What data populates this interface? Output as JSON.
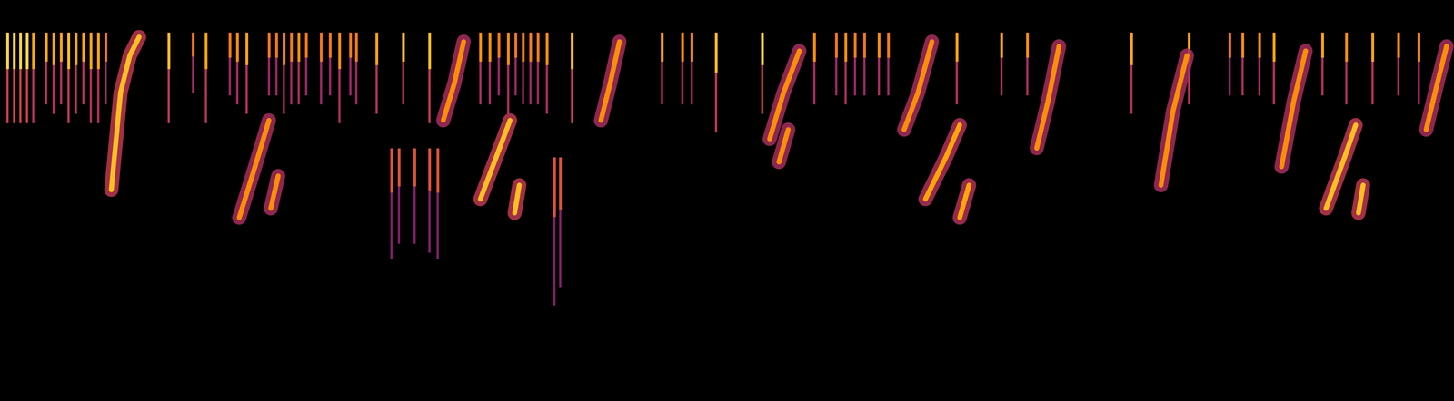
{
  "chart_data": {
    "type": "spectrogram",
    "tick_labels": false,
    "xlim": [
      0,
      1568
    ],
    "ylim": [
      0,
      433
    ],
    "clicks": [
      [
        8,
        398,
        300,
        0.9
      ],
      [
        15,
        398,
        300,
        0.9
      ],
      [
        22,
        398,
        300,
        0.9
      ],
      [
        29,
        398,
        300,
        0.9
      ],
      [
        36,
        398,
        300,
        0.8
      ],
      [
        50,
        398,
        320,
        0.8
      ],
      [
        58,
        398,
        310,
        0.8
      ],
      [
        66,
        398,
        320,
        0.8
      ],
      [
        74,
        398,
        300,
        0.85
      ],
      [
        82,
        398,
        310,
        0.8
      ],
      [
        90,
        398,
        320,
        0.8
      ],
      [
        98,
        398,
        300,
        0.8
      ],
      [
        106,
        398,
        300,
        0.8
      ],
      [
        114,
        398,
        320,
        0.7
      ],
      [
        182,
        398,
        300,
        0.85
      ],
      [
        208,
        398,
        333,
        0.7
      ],
      [
        222,
        398,
        300,
        0.8
      ],
      [
        248,
        398,
        330,
        0.7
      ],
      [
        256,
        398,
        320,
        0.75
      ],
      [
        266,
        398,
        310,
        0.8
      ],
      [
        290,
        398,
        330,
        0.7
      ],
      [
        298,
        398,
        330,
        0.7
      ],
      [
        306,
        398,
        310,
        0.75
      ],
      [
        314,
        398,
        320,
        0.7
      ],
      [
        322,
        398,
        320,
        0.75
      ],
      [
        330,
        398,
        330,
        0.7
      ],
      [
        346,
        398,
        320,
        0.7
      ],
      [
        356,
        398,
        330,
        0.7
      ],
      [
        366,
        398,
        300,
        0.75
      ],
      [
        378,
        398,
        330,
        0.7
      ],
      [
        384,
        398,
        320,
        0.7
      ],
      [
        406,
        398,
        310,
        0.8
      ],
      [
        422,
        273,
        153,
        0.6
      ],
      [
        430,
        273,
        170,
        0.6
      ],
      [
        447,
        273,
        170,
        0.6
      ],
      [
        463,
        273,
        160,
        0.6
      ],
      [
        472,
        273,
        153,
        0.6
      ],
      [
        435,
        398,
        320,
        0.85
      ],
      [
        463,
        398,
        300,
        0.85
      ],
      [
        518,
        398,
        320,
        0.75
      ],
      [
        528,
        398,
        320,
        0.75
      ],
      [
        538,
        398,
        330,
        0.7
      ],
      [
        548,
        398,
        310,
        0.75
      ],
      [
        556,
        398,
        330,
        0.7
      ],
      [
        564,
        398,
        320,
        0.7
      ],
      [
        572,
        398,
        320,
        0.7
      ],
      [
        580,
        398,
        320,
        0.7
      ],
      [
        590,
        398,
        310,
        0.75
      ],
      [
        598,
        263,
        103,
        0.6
      ],
      [
        604,
        263,
        123,
        0.6
      ],
      [
        617,
        398,
        300,
        0.85
      ],
      [
        714,
        398,
        320,
        0.8
      ],
      [
        736,
        398,
        320,
        0.75
      ],
      [
        746,
        398,
        320,
        0.75
      ],
      [
        772,
        398,
        290,
        0.85
      ],
      [
        822,
        398,
        310,
        0.9
      ],
      [
        878,
        398,
        320,
        0.75
      ],
      [
        902,
        398,
        330,
        0.7
      ],
      [
        912,
        398,
        320,
        0.75
      ],
      [
        922,
        398,
        330,
        0.7
      ],
      [
        932,
        398,
        330,
        0.7
      ],
      [
        948,
        398,
        330,
        0.75
      ],
      [
        958,
        398,
        330,
        0.7
      ],
      [
        1032,
        398,
        320,
        0.8
      ],
      [
        1080,
        398,
        330,
        0.8
      ],
      [
        1108,
        398,
        330,
        0.75
      ],
      [
        1220,
        398,
        310,
        0.8
      ],
      [
        1282,
        398,
        320,
        0.8
      ],
      [
        1326,
        398,
        330,
        0.7
      ],
      [
        1340,
        398,
        330,
        0.75
      ],
      [
        1358,
        398,
        330,
        0.75
      ],
      [
        1374,
        398,
        320,
        0.8
      ],
      [
        1426,
        398,
        330,
        0.8
      ],
      [
        1452,
        398,
        320,
        0.75
      ],
      [
        1480,
        398,
        320,
        0.8
      ],
      [
        1508,
        398,
        330,
        0.75
      ],
      [
        1530,
        398,
        320,
        0.75
      ]
    ],
    "syllables": [
      {
        "intensity": 0.85,
        "strokes": [
          [
            [
              120,
              228
            ],
            [
              130,
              333
            ],
            [
              140,
              373
            ],
            [
              150,
              393
            ]
          ]
        ]
      },
      {
        "intensity": 0.75,
        "strokes": [
          [
            [
              258,
              198
            ],
            [
              275,
              253
            ],
            [
              290,
              303
            ]
          ],
          [
            [
              292,
              208
            ],
            [
              300,
              243
            ]
          ]
        ]
      },
      {
        "intensity": 0.75,
        "strokes": [
          [
            [
              478,
              303
            ],
            [
              490,
              343
            ],
            [
              500,
              388
            ]
          ]
        ]
      },
      {
        "intensity": 0.85,
        "strokes": [
          [
            [
              518,
              218
            ],
            [
              535,
              263
            ],
            [
              550,
              303
            ]
          ],
          [
            [
              555,
              203
            ],
            [
              560,
              233
            ]
          ]
        ]
      },
      {
        "intensity": 0.75,
        "strokes": [
          [
            [
              648,
              303
            ],
            [
              658,
              343
            ],
            [
              668,
              388
            ]
          ]
        ]
      },
      {
        "intensity": 0.75,
        "strokes": [
          [
            [
              830,
              283
            ],
            [
              845,
              333
            ],
            [
              862,
              378
            ]
          ],
          [
            [
              840,
              258
            ],
            [
              850,
              293
            ]
          ]
        ]
      },
      {
        "intensity": 0.75,
        "strokes": [
          [
            [
              975,
              293
            ],
            [
              990,
              333
            ],
            [
              1005,
              388
            ]
          ]
        ]
      },
      {
        "intensity": 0.8,
        "strokes": [
          [
            [
              998,
              218
            ],
            [
              1020,
              263
            ],
            [
              1035,
              298
            ]
          ],
          [
            [
              1035,
              198
            ],
            [
              1045,
              233
            ]
          ]
        ]
      },
      {
        "intensity": 0.75,
        "strokes": [
          [
            [
              1118,
              273
            ],
            [
              1130,
              323
            ],
            [
              1142,
              383
            ]
          ]
        ]
      },
      {
        "intensity": 0.75,
        "strokes": [
          [
            [
              1252,
              233
            ],
            [
              1265,
              313
            ],
            [
              1280,
              373
            ]
          ]
        ]
      },
      {
        "intensity": 0.75,
        "strokes": [
          [
            [
              1382,
              253
            ],
            [
              1395,
              323
            ],
            [
              1408,
              378
            ]
          ]
        ]
      },
      {
        "intensity": 0.85,
        "strokes": [
          [
            [
              1430,
              208
            ],
            [
              1450,
              263
            ],
            [
              1462,
              298
            ]
          ],
          [
            [
              1465,
              203
            ],
            [
              1470,
              233
            ]
          ]
        ]
      },
      {
        "intensity": 0.75,
        "strokes": [
          [
            [
              1538,
              293
            ],
            [
              1550,
              343
            ],
            [
              1560,
              383
            ]
          ]
        ]
      }
    ]
  }
}
